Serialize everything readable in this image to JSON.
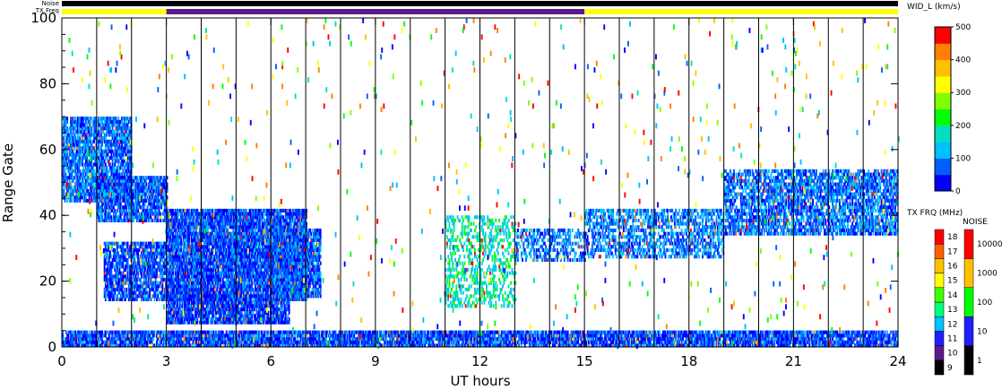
{
  "chart_data": {
    "type": "heatmap",
    "xlabel": "UT hours",
    "ylabel": "Range Gate",
    "xlim": [
      0,
      24
    ],
    "ylim": [
      0,
      100
    ],
    "x_ticks": [
      "0",
      "3",
      "6",
      "9",
      "12",
      "15",
      "18",
      "21",
      "24"
    ],
    "y_ticks": [
      "0",
      "20",
      "40",
      "60",
      "80",
      "100"
    ],
    "scan_hours": [
      1,
      2,
      3,
      4,
      5,
      6,
      7,
      8,
      9,
      10,
      11,
      12,
      13,
      14,
      15,
      16,
      17,
      18,
      19,
      20,
      21,
      22,
      23
    ],
    "status_bars": {
      "noise_label": "Noise",
      "txfreq_label": "TX Freq",
      "txfreq_segments": [
        {
          "start": 0,
          "end": 3,
          "color": "#ffff00"
        },
        {
          "start": 3,
          "end": 15,
          "color": "#5a1a8a"
        },
        {
          "start": 15,
          "end": 24,
          "color": "#ffff00"
        }
      ]
    },
    "colorbar_width": {
      "label": "WID_L (km/s)",
      "min": 0,
      "max": 500,
      "tick_labels": [
        "0",
        "100",
        "200",
        "300",
        "400",
        "500"
      ],
      "colors": [
        "#0000ff",
        "#0060ff",
        "#00c0ff",
        "#00e0c0",
        "#00ff00",
        "#80ff00",
        "#ffff00",
        "#ffc000",
        "#ff8000",
        "#ff0000"
      ]
    },
    "colorbar_txfreq": {
      "label": "TX FRQ (MHz)",
      "levels": [
        "9",
        "10",
        "11",
        "12",
        "13",
        "14",
        "15",
        "16",
        "17",
        "18"
      ],
      "colors": [
        "#000000",
        "#5a1a8a",
        "#2020ff",
        "#00c0ff",
        "#00ff80",
        "#40ff00",
        "#ffff00",
        "#ffc000",
        "#ff6000",
        "#ff0000"
      ]
    },
    "colorbar_noise": {
      "label": "NOISE",
      "levels": [
        "1",
        "10",
        "100",
        "1000",
        "10000"
      ],
      "colors": [
        "#000000",
        "#2020ff",
        "#00ff00",
        "#ffc000",
        "#ff0000"
      ]
    },
    "echo_bands": [
      {
        "t0": 0.0,
        "t1": 24.0,
        "g0": 0,
        "g1": 5,
        "density": 0.85,
        "wid": 60
      },
      {
        "t0": 0.0,
        "t1": 2.0,
        "g0": 44,
        "g1": 70,
        "density": 0.8,
        "wid": 80
      },
      {
        "t0": 1.0,
        "t1": 3.0,
        "g0": 38,
        "g1": 52,
        "density": 0.8,
        "wid": 70
      },
      {
        "t0": 1.2,
        "t1": 3.0,
        "g0": 14,
        "g1": 32,
        "density": 0.75,
        "wid": 60
      },
      {
        "t0": 3.0,
        "t1": 7.0,
        "g0": 14,
        "g1": 42,
        "density": 0.9,
        "wid": 60
      },
      {
        "t0": 3.0,
        "t1": 6.5,
        "g0": 7,
        "g1": 16,
        "density": 0.85,
        "wid": 50
      },
      {
        "t0": 6.0,
        "t1": 7.4,
        "g0": 15,
        "g1": 36,
        "density": 0.8,
        "wid": 70
      },
      {
        "t0": 11.0,
        "t1": 13.0,
        "g0": 12,
        "g1": 40,
        "density": 0.35,
        "wid": 170
      },
      {
        "t0": 13.0,
        "t1": 15.0,
        "g0": 26,
        "g1": 36,
        "density": 0.5,
        "wid": 90
      },
      {
        "t0": 15.0,
        "t1": 19.0,
        "g0": 27,
        "g1": 42,
        "density": 0.55,
        "wid": 90
      },
      {
        "t0": 19.0,
        "t1": 24.0,
        "g0": 34,
        "g1": 54,
        "density": 0.7,
        "wid": 80
      }
    ]
  }
}
